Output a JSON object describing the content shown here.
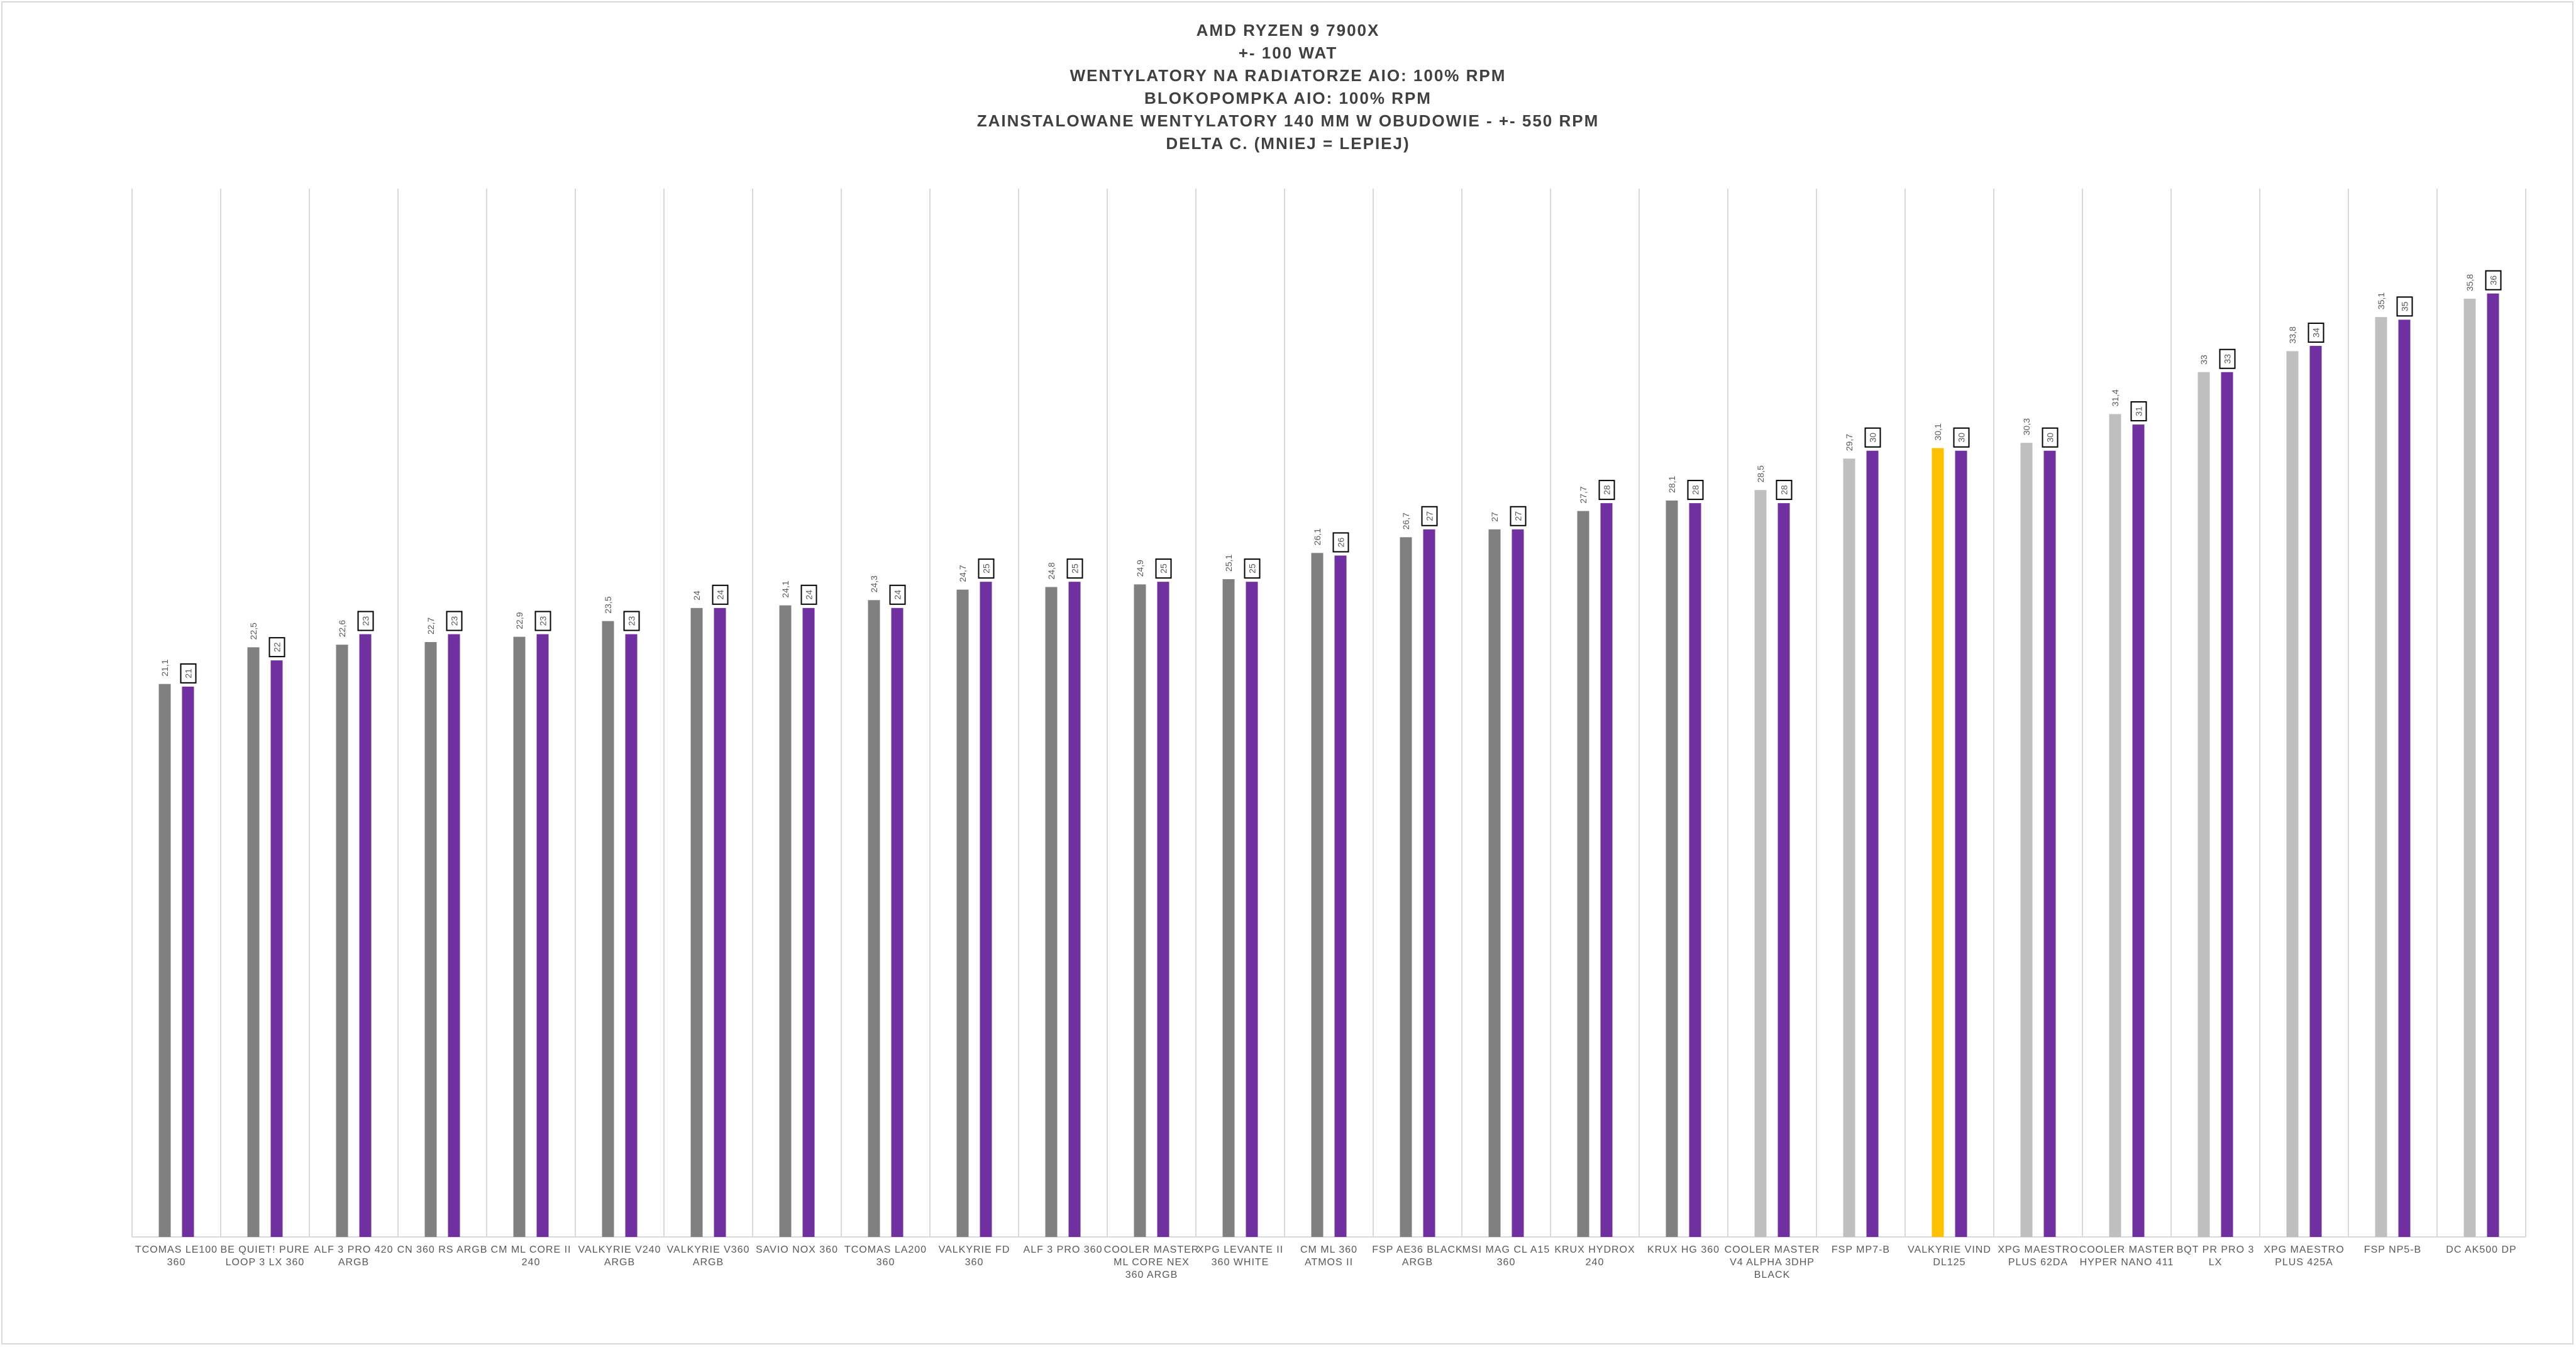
{
  "title_lines": [
    "AMD RYZEN 9 7900X",
    "+- 100 WAT",
    "WENTYLATORY NA RADIATORZE AIO: 100% RPM",
    "BLOKOPOMPKA AIO: 100% RPM",
    "ZAINSTALOWANE WENTYLATORY 140 MM W OBUDOWIE - +- 550 RPM",
    "DELTA C. (MNIEJ = LEPIEJ)"
  ],
  "colors": {
    "dark_gray": "#808080",
    "light_gray": "#bfbfbf",
    "highlight": "#ffc000",
    "purple": "#7030a0",
    "gridline": "#d9d9d9",
    "axis": "#d9d9d9",
    "label_text": "#595959"
  },
  "chart_data": {
    "type": "bar",
    "ylim": [
      0,
      40
    ],
    "grid": "vertical category separators",
    "legend": "none",
    "categories": [
      "TCOMAS LE100 360",
      "BE QUIET! PURE LOOP 3 LX 360",
      "ALF 3 PRO 420 ARGB",
      "CN 360 RS ARGB",
      "CM ML CORE II 240",
      "VALKYRIE V240 ARGB",
      "VALKYRIE V360 ARGB",
      "SAVIO NOX 360",
      "TCOMAS LA200 360",
      "VALKYRIE FD 360",
      "ALF 3 PRO 360",
      "COOLER MASTER ML CORE NEX 360 ARGB",
      "XPG LEVANTE II 360 WHITE",
      "CM ML 360 ATMOS II",
      "FSP AE36 BLACK ARGB",
      "MSI MAG CL A15 360",
      "KRUX HYDROX 240",
      "KRUX HG 360",
      "COOLER MASTER V4 ALPHA 3DHP BLACK",
      "FSP MP7-B",
      "VALKYRIE VIND DL125",
      "XPG MAESTRO PLUS 62DA",
      "COOLER MASTER HYPER NANO 411",
      "BQT PR PRO 3 LX",
      "XPG MAESTRO PLUS 425A",
      "FSP NP5-B",
      "DC AK500 DP"
    ],
    "series": [
      {
        "values": [
          21.1,
          22.5,
          22.6,
          22.7,
          22.9,
          23.5,
          24,
          24.1,
          24.3,
          24.7,
          24.8,
          24.9,
          25.1,
          26.1,
          26.7,
          27,
          27.7,
          28.1,
          28.5,
          29.7,
          30.1,
          30.3,
          31.4,
          33,
          33.8,
          35.1,
          35.8
        ],
        "labels": [
          "21,1",
          "22,5",
          "22,6",
          "22,7",
          "22,9",
          "23,5",
          "24",
          "24,1",
          "24,3",
          "24,7",
          "24,8",
          "24,9",
          "25,1",
          "26,1",
          "26,7",
          "27",
          "27,7",
          "28,1",
          "28,5",
          "29,7",
          "30,1",
          "30,3",
          "31,4",
          "33",
          "33,8",
          "35,1",
          "35,8"
        ],
        "colors": [
          "dark_gray",
          "dark_gray",
          "dark_gray",
          "dark_gray",
          "dark_gray",
          "dark_gray",
          "dark_gray",
          "dark_gray",
          "dark_gray",
          "dark_gray",
          "dark_gray",
          "dark_gray",
          "dark_gray",
          "dark_gray",
          "dark_gray",
          "dark_gray",
          "dark_gray",
          "dark_gray",
          "light_gray",
          "light_gray",
          "highlight",
          "light_gray",
          "light_gray",
          "light_gray",
          "light_gray",
          "light_gray",
          "light_gray"
        ]
      },
      {
        "values": [
          21,
          22,
          23,
          23,
          23,
          23,
          24,
          24,
          24,
          25,
          25,
          25,
          25,
          26,
          27,
          27,
          28,
          28,
          28,
          30,
          30,
          30,
          31,
          33,
          34,
          35,
          36
        ],
        "labels": [
          "21",
          "22",
          "23",
          "23",
          "23",
          "23",
          "24",
          "24",
          "24",
          "25",
          "25",
          "25",
          "25",
          "26",
          "27",
          "27",
          "28",
          "28",
          "28",
          "30",
          "30",
          "30",
          "31",
          "33",
          "34",
          "35",
          "36"
        ],
        "colors": [
          "purple",
          "purple",
          "purple",
          "purple",
          "purple",
          "purple",
          "purple",
          "purple",
          "purple",
          "purple",
          "purple",
          "purple",
          "purple",
          "purple",
          "purple",
          "purple",
          "purple",
          "purple",
          "purple",
          "purple",
          "purple",
          "purple",
          "purple",
          "purple",
          "purple",
          "purple",
          "purple"
        ]
      }
    ]
  }
}
